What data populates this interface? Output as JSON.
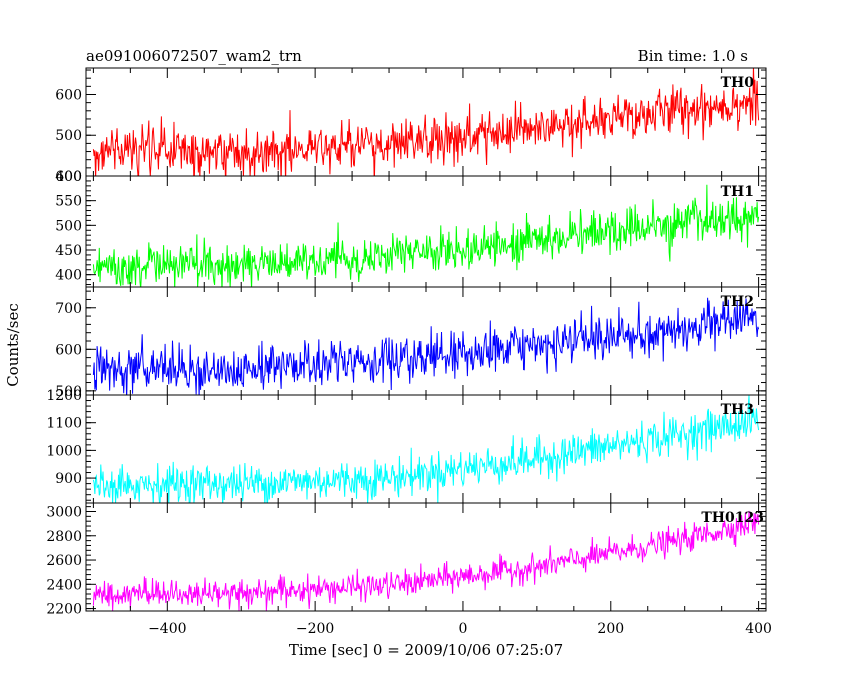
{
  "header": {
    "title": "ae091006072507_wam2_trn",
    "bin_time": "Bin time: 1.0 s"
  },
  "chart_data": {
    "type": "line",
    "title": "ae091006072507_wam2_trn",
    "subtitle": "Bin time: 1.0 s",
    "xlabel": "Time [sec] 0 = 2009/10/06 07:25:07",
    "ylabel": "Counts/sec",
    "xlim": [
      -510,
      410
    ],
    "x_ticks": [
      -400,
      -200,
      0,
      200,
      400
    ],
    "x_tick_labels": [
      "−400",
      "−200",
      "0",
      "200",
      "400"
    ],
    "bin_time_sec": 1.0,
    "grid": false,
    "legend": "none",
    "panels": [
      {
        "name": "TH0",
        "color": "#ff0000",
        "ylim": [
          400,
          665
        ],
        "y_ticks": [
          400,
          500,
          600
        ],
        "x_start": -500,
        "x_end": 400,
        "trend": [
          {
            "x": -500,
            "y": 465
          },
          {
            "x": -300,
            "y": 460
          },
          {
            "x": -100,
            "y": 475
          },
          {
            "x": 100,
            "y": 510
          },
          {
            "x": 300,
            "y": 565
          },
          {
            "x": 400,
            "y": 585
          }
        ],
        "noise_sigma": 30
      },
      {
        "name": "TH1",
        "color": "#00ff00",
        "ylim": [
          375,
          600
        ],
        "y_ticks": [
          400,
          450,
          500,
          550,
          600
        ],
        "x_start": -500,
        "x_end": 400,
        "trend": [
          {
            "x": -500,
            "y": 415
          },
          {
            "x": -300,
            "y": 420
          },
          {
            "x": -100,
            "y": 435
          },
          {
            "x": 100,
            "y": 470
          },
          {
            "x": 300,
            "y": 505
          },
          {
            "x": 400,
            "y": 520
          }
        ],
        "noise_sigma": 22
      },
      {
        "name": "TH2",
        "color": "#0000ff",
        "ylim": [
          490,
          750
        ],
        "y_ticks": [
          500,
          600,
          700
        ],
        "x_start": -500,
        "x_end": 400,
        "trend": [
          {
            "x": -500,
            "y": 550
          },
          {
            "x": -300,
            "y": 555
          },
          {
            "x": -100,
            "y": 570
          },
          {
            "x": 100,
            "y": 605
          },
          {
            "x": 300,
            "y": 650
          },
          {
            "x": 400,
            "y": 680
          }
        ],
        "noise_sigma": 28
      },
      {
        "name": "TH3",
        "color": "#00ffff",
        "ylim": [
          810,
          1200
        ],
        "y_ticks": [
          900,
          1000,
          1100,
          1200
        ],
        "x_start": -500,
        "x_end": 400,
        "trend": [
          {
            "x": -500,
            "y": 880
          },
          {
            "x": -300,
            "y": 880
          },
          {
            "x": -100,
            "y": 900
          },
          {
            "x": 100,
            "y": 970
          },
          {
            "x": 300,
            "y": 1060
          },
          {
            "x": 400,
            "y": 1110
          }
        ],
        "noise_sigma": 35
      },
      {
        "name": "TH0123",
        "color": "#ff00ff",
        "ylim": [
          2180,
          3070
        ],
        "y_ticks": [
          2200,
          2400,
          2600,
          2800,
          3000
        ],
        "x_start": -500,
        "x_end": 400,
        "trend": [
          {
            "x": -500,
            "y": 2320
          },
          {
            "x": -300,
            "y": 2330
          },
          {
            "x": -100,
            "y": 2390
          },
          {
            "x": 100,
            "y": 2540
          },
          {
            "x": 300,
            "y": 2770
          },
          {
            "x": 400,
            "y": 2920
          }
        ],
        "noise_sigma": 55
      }
    ]
  }
}
